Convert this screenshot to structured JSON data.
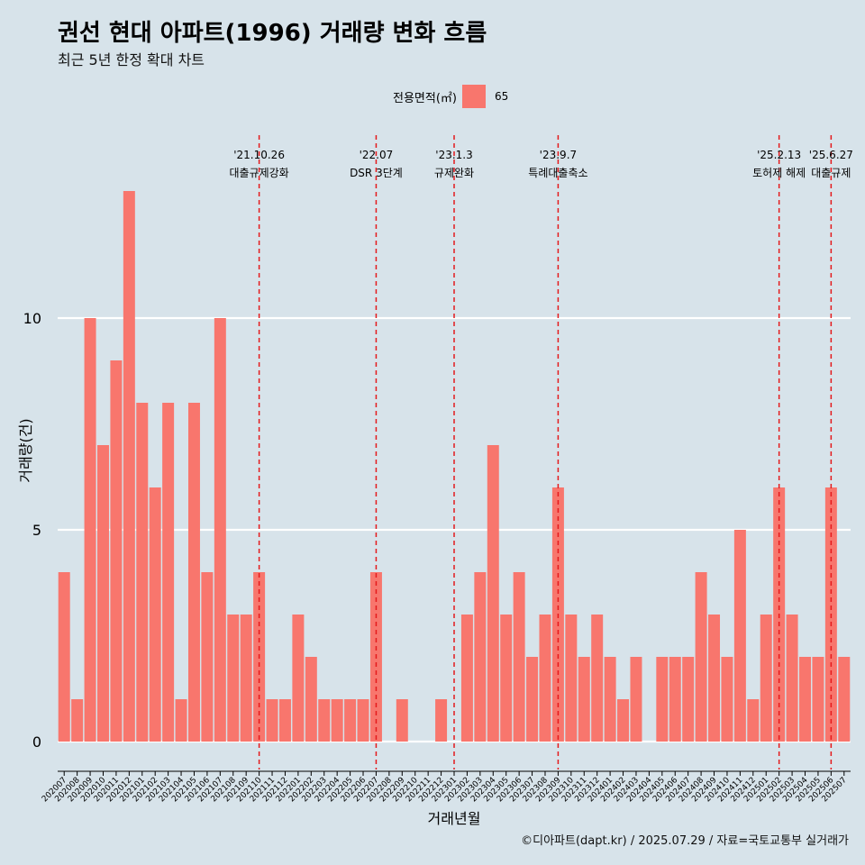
{
  "title": "권선 현대 아파트(1996) 거래량 변화 흐름",
  "subtitle": "최근 5년 한정 확대 차트",
  "caption": "©디아파트(dapt.kr) / 2025.07.29 / 자료=국토교통부 실거래가",
  "legend": {
    "title": "전용면적(㎡)",
    "items": [
      {
        "label": "65",
        "color": "#f8766d"
      }
    ]
  },
  "colors": {
    "background": "#d7e3ea",
    "bar": "#f8766d",
    "gridline": "#ffffff",
    "event_line": "#e41a1c"
  },
  "chart_data": {
    "type": "bar",
    "title": "권선 현대 아파트(1996) 거래량 변화 흐름",
    "subtitle": "최근 5년 한정 확대 차트",
    "xlabel": "거래년월",
    "ylabel": "거래량(건)",
    "ylim": [
      -0.6,
      14.5
    ],
    "yticks": [
      0,
      5,
      10
    ],
    "grid": "horizontal major lines",
    "legend_position": "top",
    "categories": [
      "202007",
      "202008",
      "202009",
      "202010",
      "202011",
      "202012",
      "202101",
      "202102",
      "202103",
      "202104",
      "202105",
      "202106",
      "202107",
      "202108",
      "202109",
      "202110",
      "202111",
      "202112",
      "202201",
      "202202",
      "202203",
      "202204",
      "202205",
      "202206",
      "202207",
      "202208",
      "202209",
      "202210",
      "202211",
      "202212",
      "202301",
      "202302",
      "202303",
      "202304",
      "202305",
      "202306",
      "202307",
      "202308",
      "202309",
      "202310",
      "202311",
      "202312",
      "202401",
      "202402",
      "202403",
      "202404",
      "202405",
      "202406",
      "202407",
      "202408",
      "202409",
      "202410",
      "202411",
      "202412",
      "202501",
      "202502",
      "202503",
      "202504",
      "202505",
      "202506",
      "202507"
    ],
    "series": [
      {
        "name": "65",
        "values": [
          4,
          1,
          10,
          7,
          9,
          13,
          8,
          6,
          8,
          1,
          8,
          4,
          10,
          3,
          3,
          4,
          1,
          1,
          3,
          2,
          1,
          1,
          1,
          1,
          4,
          0,
          1,
          0,
          0,
          1,
          0,
          3,
          4,
          7,
          3,
          4,
          2,
          3,
          6,
          3,
          2,
          3,
          2,
          1,
          2,
          0,
          2,
          2,
          2,
          4,
          3,
          2,
          5,
          1,
          3,
          6,
          3,
          2,
          2,
          6,
          2
        ]
      }
    ],
    "events": [
      {
        "month": "202110",
        "date": "'21.10.26",
        "label": "대출규제강화"
      },
      {
        "month": "202207",
        "date": "'22.07",
        "label": "DSR 3단계"
      },
      {
        "month": "202301",
        "date": "'23.1.3",
        "label": "규제완화"
      },
      {
        "month": "202309",
        "date": "'23.9.7",
        "label": "특례대출축소"
      },
      {
        "month": "202502",
        "date": "'25.2.13",
        "label": "토허제 해제"
      },
      {
        "month": "202506",
        "date": "'25.6.27",
        "label": "대출규제"
      }
    ]
  }
}
